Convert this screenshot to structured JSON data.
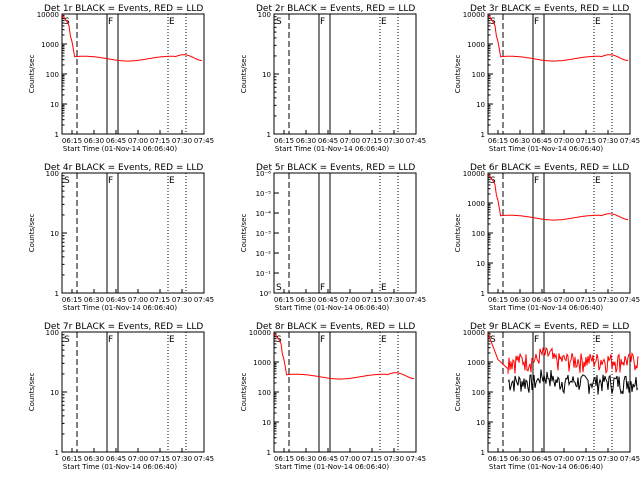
{
  "figure": {
    "x_axis_label": "Start Time (01-Nov-14 06:06:40)",
    "y_axis_label": "Counts/sec",
    "x_tick_labels": [
      "06:15",
      "06:30",
      "06:45",
      "07:00",
      "07:15",
      "07:30",
      "07:45"
    ],
    "marker_labels": {
      "S": "S",
      "F": "F",
      "E": "E"
    },
    "colors": {
      "events": "#000000",
      "lld": "#ff0000"
    }
  },
  "chart_data": [
    {
      "type": "line",
      "title": "Det 1r BLACK = Events, RED = LLD",
      "ytype": "A",
      "ylim": [
        1,
        10000
      ],
      "yticks": [
        "1",
        "10",
        "100",
        "1000",
        "10000"
      ],
      "series": [
        {
          "name": "Events",
          "color": "#000000",
          "values": "smooth"
        },
        {
          "name": "LLD",
          "color": "#ff0000",
          "values": "smooth"
        }
      ],
      "markers": [
        "S",
        "F",
        "E"
      ]
    },
    {
      "type": "line",
      "title": "Det 2r BLACK = Events, RED = LLD",
      "ytype": "B",
      "ylim": [
        1,
        100
      ],
      "yticks": [
        "1",
        "10",
        "100"
      ],
      "series": [],
      "markers": [
        "S",
        "F",
        "E"
      ]
    },
    {
      "type": "line",
      "title": "Det 3r BLACK = Events, RED = LLD",
      "ytype": "A",
      "ylim": [
        1,
        10000
      ],
      "yticks": [
        "1",
        "10",
        "100",
        "1000",
        "10000"
      ],
      "series": [
        {
          "name": "Events",
          "color": "#000000",
          "values": "smooth"
        },
        {
          "name": "LLD",
          "color": "#ff0000",
          "values": "smooth"
        }
      ],
      "markers": [
        "S",
        "F",
        "E"
      ]
    },
    {
      "type": "line",
      "title": "Det 4r BLACK = Events, RED = LLD",
      "ytype": "B",
      "ylim": [
        1,
        100
      ],
      "yticks": [
        "1",
        "10",
        "100"
      ],
      "series": [],
      "markers": [
        "S",
        "F",
        "E"
      ]
    },
    {
      "type": "line",
      "title": "Det 5r BLACK = Events, RED = LLD",
      "ytype": "C",
      "ylim": [
        1e-06,
        1
      ],
      "yticks": [
        "10⁰",
        "10⁻¹",
        "10⁻²",
        "10⁻³",
        "10⁻⁴",
        "10⁻⁵",
        "10⁻⁶"
      ],
      "series": [],
      "markers": [
        "S",
        "F",
        "E"
      ]
    },
    {
      "type": "line",
      "title": "Det 6r BLACK = Events, RED = LLD",
      "ytype": "A",
      "ylim": [
        1,
        10000
      ],
      "yticks": [
        "1",
        "10",
        "100",
        "1000",
        "10000"
      ],
      "series": [
        {
          "name": "Events",
          "color": "#000000",
          "values": "smooth"
        },
        {
          "name": "LLD",
          "color": "#ff0000",
          "values": "smooth"
        }
      ],
      "markers": [
        "S",
        "F",
        "E"
      ]
    },
    {
      "type": "line",
      "title": "Det 7r BLACK = Events, RED = LLD",
      "ytype": "B",
      "ylim": [
        1,
        100
      ],
      "yticks": [
        "1",
        "10",
        "100"
      ],
      "series": [],
      "markers": [
        "S",
        "F",
        "E"
      ]
    },
    {
      "type": "line",
      "title": "Det 8r BLACK = Events, RED = LLD",
      "ytype": "A",
      "ylim": [
        1,
        10000
      ],
      "yticks": [
        "1",
        "10",
        "100",
        "1000",
        "10000"
      ],
      "series": [
        {
          "name": "Events",
          "color": "#000000",
          "values": "smooth"
        },
        {
          "name": "LLD",
          "color": "#ff0000",
          "values": "smooth"
        }
      ],
      "markers": [
        "S",
        "F",
        "E"
      ]
    },
    {
      "type": "line",
      "title": "Det 9r BLACK = Events, RED = LLD",
      "ytype": "A",
      "ylim": [
        1,
        10000
      ],
      "yticks": [
        "1",
        "10",
        "100",
        "1000",
        "10000"
      ],
      "series": [
        {
          "name": "Events",
          "color": "#000000",
          "values": "noisy"
        },
        {
          "name": "LLD",
          "color": "#ff0000",
          "values": "noisy"
        }
      ],
      "markers": [
        "S",
        "F",
        "E"
      ]
    }
  ]
}
